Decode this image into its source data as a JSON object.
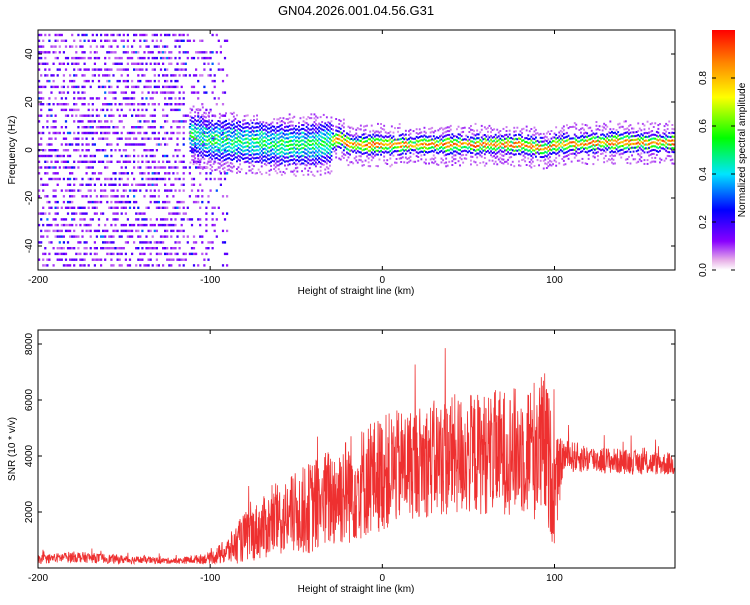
{
  "title": "GN04.2026.001.04.56.G31",
  "chart_data": [
    {
      "type": "heatmap",
      "xlabel": "Height of straight line (km)",
      "ylabel": "Frequency (Hz)",
      "xlim": [
        -200,
        170
      ],
      "ylim": [
        -50,
        50
      ],
      "x_ticks": [
        -200,
        -100,
        0,
        100
      ],
      "y_ticks": [
        -40,
        -20,
        0,
        20,
        40
      ],
      "colorbar": {
        "label": "Normalized spectral amplitude",
        "range": [
          0,
          1
        ],
        "ticks": [
          "0.0",
          "0.2",
          "0.4",
          "0.6",
          "0.8"
        ],
        "colors": [
          "#e8b0e8",
          "#6a00ff",
          "#0000ff",
          "#00e5ff",
          "#00ff00",
          "#ffff00",
          "#ff0000"
        ]
      },
      "ridge": {
        "x": [
          -110,
          -100,
          -80,
          -60,
          -40,
          -30,
          -25,
          -20,
          0,
          40,
          70,
          80,
          90,
          95,
          100,
          130,
          170
        ],
        "freq": [
          5,
          3,
          2,
          1,
          1,
          2,
          4,
          1,
          1,
          1,
          1,
          1,
          0,
          -1,
          1,
          2,
          2
        ],
        "peak_amplitude": 0.9
      },
      "noise_region": {
        "x": [
          -200,
          -90
        ],
        "freq": [
          -50,
          50
        ],
        "typical_amplitude": 0.1
      }
    },
    {
      "type": "line",
      "xlabel": "Height of straight line (km)",
      "ylabel": "SNR (10 * v/v)",
      "xlim": [
        -200,
        170
      ],
      "ylim": [
        0,
        8500
      ],
      "x_ticks": [
        -200,
        -100,
        0,
        100
      ],
      "y_ticks": [
        2000,
        4000,
        6000,
        8000
      ],
      "color": "#ee3030",
      "envelope": {
        "x": [
          -200,
          -180,
          -150,
          -120,
          -100,
          -90,
          -80,
          -60,
          -40,
          -20,
          0,
          20,
          40,
          60,
          80,
          95,
          100,
          105,
          120,
          140,
          170
        ],
        "mean": [
          300,
          400,
          300,
          250,
          350,
          600,
          1100,
          1700,
          2200,
          2800,
          3400,
          3800,
          4000,
          4100,
          4200,
          4300,
          2700,
          4000,
          3900,
          3800,
          3700
        ],
        "amplitude": [
          150,
          200,
          150,
          100,
          200,
          500,
          900,
          1300,
          1700,
          2000,
          2100,
          2000,
          2200,
          2200,
          2300,
          2800,
          2000,
          600,
          500,
          450,
          400
        ]
      }
    }
  ]
}
